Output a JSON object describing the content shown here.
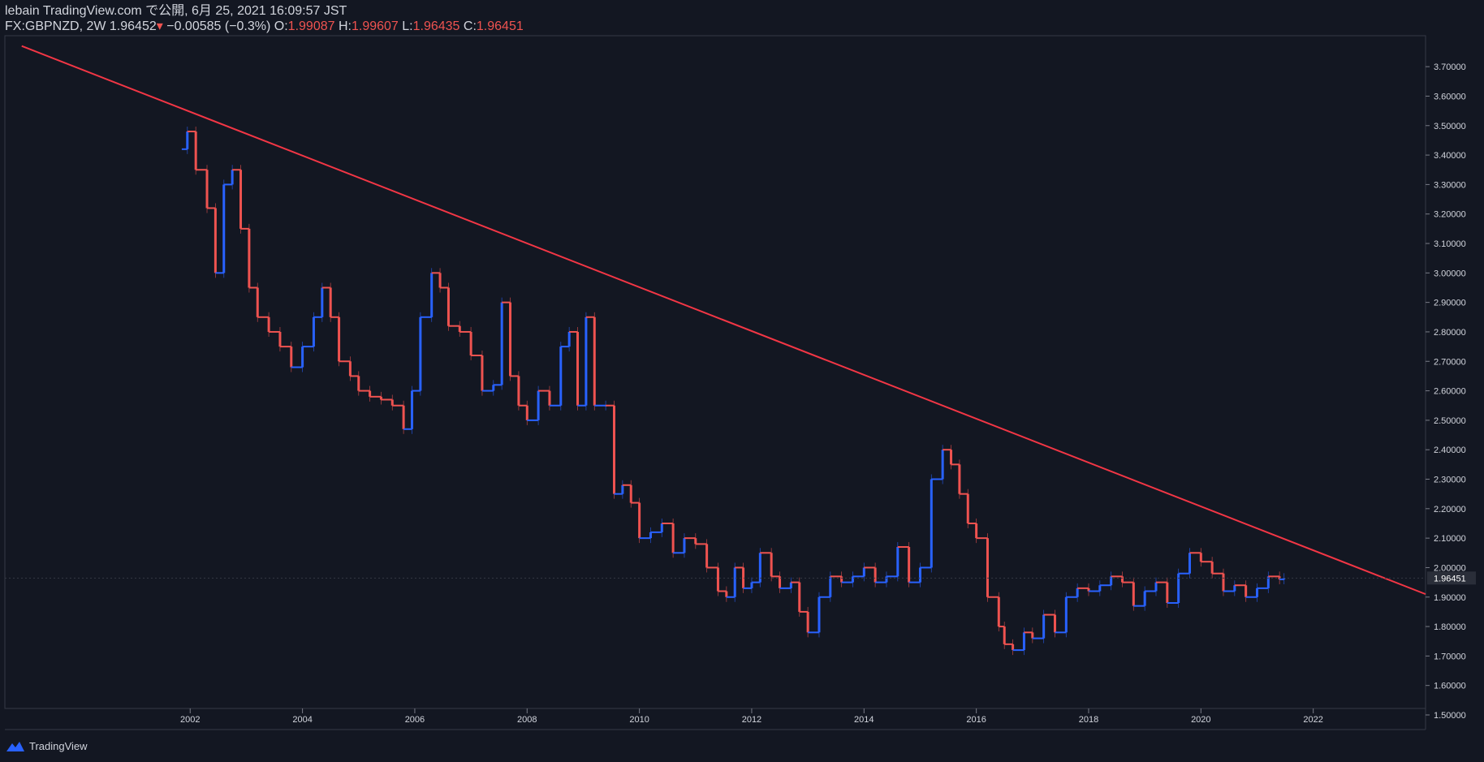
{
  "header": {
    "line1": "lebain TradingView.com で公開, 6月 25, 2021 16:09:57 JST",
    "symbol": "FX:GBPNZD, 2W",
    "price": "1.96452",
    "change": "−0.00585 (−0.3%)",
    "o_label": "O:",
    "o": "1.99087",
    "h_label": "H:",
    "h": "1.99607",
    "l_label": "L:",
    "l": "1.96435",
    "c_label": "C:",
    "c": "1.96451"
  },
  "footer": {
    "brand": "TradingView"
  },
  "colors": {
    "background": "#131722",
    "up": "#2962ff",
    "down": "#ef5350",
    "trendline": "#f23645",
    "text": "#d1d4dc"
  },
  "chart_data": {
    "type": "line",
    "title": "FX:GBPNZD, 2W",
    "xlabel": "",
    "ylabel": "",
    "x_ticks": [
      "2002",
      "2004",
      "2006",
      "2008",
      "2010",
      "2012",
      "2014",
      "2016",
      "2018",
      "2020",
      "2022"
    ],
    "y_ticks": [
      "1.50000",
      "1.60000",
      "1.70000",
      "1.80000",
      "1.90000",
      "2.00000",
      "2.10000",
      "2.20000",
      "2.30000",
      "2.40000",
      "2.50000",
      "2.60000",
      "2.70000",
      "2.80000",
      "2.90000",
      "3.00000",
      "3.10000",
      "3.20000",
      "3.30000",
      "3.40000",
      "3.50000",
      "3.60000",
      "3.70000"
    ],
    "ylim": [
      1.5,
      3.75
    ],
    "xlim": [
      1998.7,
      2024.0
    ],
    "last_price_label": "1.96451",
    "series": [
      {
        "kind": "close-approx",
        "x": [
          2001.85,
          2001.95,
          2002.1,
          2002.3,
          2002.45,
          2002.6,
          2002.75,
          2002.9,
          2003.05,
          2003.2,
          2003.4,
          2003.6,
          2003.8,
          2004.0,
          2004.2,
          2004.35,
          2004.5,
          2004.65,
          2004.85,
          2005.0,
          2005.2,
          2005.4,
          2005.6,
          2005.8,
          2005.95,
          2006.1,
          2006.3,
          2006.45,
          2006.6,
          2006.8,
          2007.0,
          2007.2,
          2007.4,
          2007.55,
          2007.7,
          2007.85,
          2008.0,
          2008.2,
          2008.4,
          2008.6,
          2008.75,
          2008.9,
          2009.05,
          2009.2,
          2009.4,
          2009.55,
          2009.7,
          2009.85,
          2010.0,
          2010.2,
          2010.4,
          2010.6,
          2010.8,
          2011.0,
          2011.2,
          2011.4,
          2011.55,
          2011.7,
          2011.85,
          2012.0,
          2012.15,
          2012.35,
          2012.5,
          2012.7,
          2012.85,
          2013.0,
          2013.2,
          2013.4,
          2013.6,
          2013.8,
          2014.0,
          2014.2,
          2014.4,
          2014.6,
          2014.8,
          2015.0,
          2015.2,
          2015.4,
          2015.55,
          2015.7,
          2015.85,
          2016.0,
          2016.2,
          2016.4,
          2016.5,
          2016.65,
          2016.85,
          2017.0,
          2017.2,
          2017.4,
          2017.6,
          2017.8,
          2018.0,
          2018.2,
          2018.4,
          2018.6,
          2018.8,
          2019.0,
          2019.2,
          2019.4,
          2019.6,
          2019.8,
          2020.0,
          2020.2,
          2020.4,
          2020.6,
          2020.8,
          2021.0,
          2021.2,
          2021.4,
          2021.48
        ],
        "y": [
          3.42,
          3.48,
          3.35,
          3.22,
          3.0,
          3.3,
          3.35,
          3.15,
          2.95,
          2.85,
          2.8,
          2.75,
          2.68,
          2.75,
          2.85,
          2.95,
          2.85,
          2.7,
          2.65,
          2.6,
          2.58,
          2.57,
          2.55,
          2.47,
          2.6,
          2.85,
          3.0,
          2.95,
          2.82,
          2.8,
          2.72,
          2.6,
          2.62,
          2.9,
          2.65,
          2.55,
          2.5,
          2.6,
          2.55,
          2.75,
          2.8,
          2.55,
          2.85,
          2.55,
          2.55,
          2.25,
          2.28,
          2.22,
          2.1,
          2.12,
          2.15,
          2.05,
          2.1,
          2.08,
          2.0,
          1.92,
          1.9,
          2.0,
          1.93,
          1.95,
          2.05,
          1.97,
          1.93,
          1.95,
          1.85,
          1.78,
          1.9,
          1.97,
          1.95,
          1.97,
          2.0,
          1.95,
          1.97,
          2.07,
          1.95,
          2.0,
          2.3,
          2.4,
          2.35,
          2.25,
          2.15,
          2.1,
          1.9,
          1.8,
          1.74,
          1.72,
          1.78,
          1.76,
          1.84,
          1.78,
          1.9,
          1.93,
          1.92,
          1.94,
          1.97,
          1.95,
          1.87,
          1.92,
          1.95,
          1.88,
          1.98,
          2.05,
          2.02,
          1.98,
          1.92,
          1.94,
          1.9,
          1.93,
          1.97,
          1.96,
          1.96451
        ]
      }
    ],
    "trendline": {
      "x": [
        1999.0,
        2024.0
      ],
      "y": [
        3.77,
        1.91
      ]
    }
  }
}
